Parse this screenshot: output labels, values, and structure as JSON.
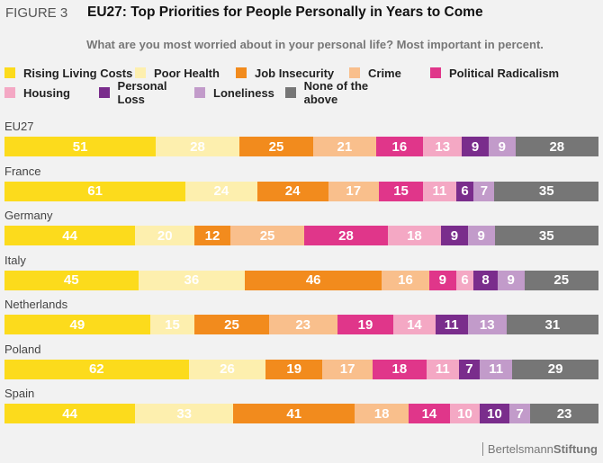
{
  "figure_label": "FIGURE 3",
  "brand": {
    "part1": "Bertelsmann",
    "part2": "Stiftung"
  },
  "chart_data": {
    "type": "bar",
    "stacked": true,
    "orientation": "horizontal",
    "title": "EU27: Top Priorities for People Personally in Years to Come",
    "subtitle": "What are you most worried about in your personal life? Most important in percent.",
    "legend_position": "top-left",
    "categories": [
      "EU27",
      "France",
      "Germany",
      "Italy",
      "Netherlands",
      "Poland",
      "Spain"
    ],
    "series": [
      {
        "name": "Rising Living Costs",
        "color": "#fcdb1c",
        "values": [
          51,
          61,
          44,
          45,
          49,
          62,
          44
        ]
      },
      {
        "name": "Poor Health",
        "color": "#fdefae",
        "values": [
          28,
          24,
          20,
          36,
          15,
          26,
          33
        ]
      },
      {
        "name": "Job Insecurity",
        "color": "#f28b1d",
        "values": [
          25,
          24,
          12,
          46,
          25,
          19,
          41
        ]
      },
      {
        "name": "Crime",
        "color": "#f9bf8c",
        "values": [
          21,
          17,
          25,
          16,
          23,
          17,
          18
        ]
      },
      {
        "name": "Political Radicalism",
        "color": "#e0368a",
        "values": [
          16,
          15,
          28,
          9,
          19,
          18,
          14
        ]
      },
      {
        "name": "Housing",
        "color": "#f4a8c4",
        "values": [
          13,
          11,
          18,
          6,
          14,
          11,
          10
        ]
      },
      {
        "name": "Personal Loss",
        "color": "#7a2d8c",
        "values": [
          9,
          6,
          9,
          8,
          11,
          7,
          10
        ]
      },
      {
        "name": "Loneliness",
        "color": "#c29bca",
        "values": [
          9,
          7,
          9,
          9,
          13,
          11,
          7
        ]
      },
      {
        "name": "None of the above",
        "color": "#767676",
        "values": [
          28,
          35,
          35,
          25,
          31,
          29,
          23
        ]
      }
    ]
  }
}
